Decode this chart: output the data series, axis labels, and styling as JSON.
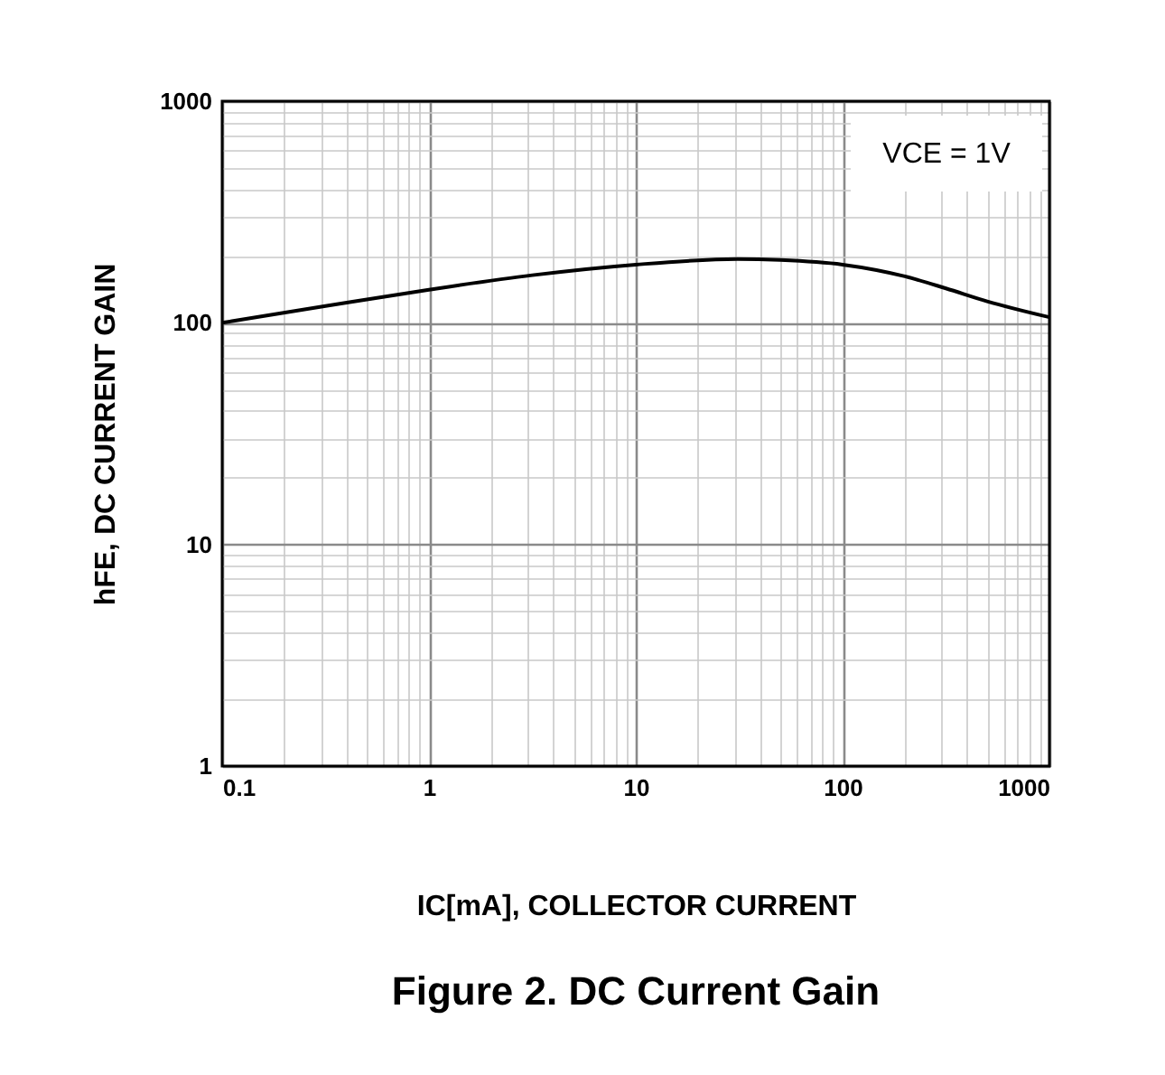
{
  "chart_data": {
    "type": "line",
    "title": "Figure 2. DC Current Gain",
    "xlabel": "IC[mA], COLLECTOR CURRENT",
    "ylabel": "hFE, DC CURRENT GAIN",
    "annotations": [
      "VCE = 1V"
    ],
    "x": [
      0.1,
      0.316,
      1,
      3.16,
      10,
      31,
      50,
      100,
      200,
      316,
      500,
      1000
    ],
    "series": [
      {
        "color": "#000000",
        "values": [
          100,
          119,
          141,
          164,
          183,
          194,
          192,
          183,
          162,
          143,
          125,
          106
        ]
      }
    ],
    "log": "xy",
    "grid": true,
    "marker": "none",
    "line_style": "solid",
    "xlim": [
      0.1,
      1000
    ],
    "ylim": [
      1,
      1000
    ],
    "xticks": [
      0.1,
      {
        "value": 0.2,
        "label": null
      },
      {
        "value": 0.3,
        "label": null
      },
      {
        "value": 0.4,
        "label": null
      },
      {
        "value": 0.5,
        "label": null
      },
      {
        "value": 0.6,
        "label": null
      },
      {
        "value": 0.7,
        "label": null
      },
      {
        "value": 0.8,
        "label": null
      },
      {
        "value": 0.9,
        "label": null
      },
      1,
      {
        "value": 2,
        "label": null
      },
      {
        "value": 3,
        "label": null
      },
      {
        "value": 4,
        "label": null
      },
      {
        "value": 5,
        "label": null
      },
      {
        "value": 6,
        "label": null
      },
      {
        "value": 7,
        "label": null
      },
      {
        "value": 8,
        "label": null
      },
      {
        "value": 9,
        "label": null
      },
      10,
      {
        "value": 20,
        "label": null
      },
      {
        "value": 30,
        "label": null
      },
      {
        "value": 40,
        "label": null
      },
      {
        "value": 50,
        "label": null
      },
      {
        "value": 60,
        "label": null
      },
      {
        "value": 70,
        "label": null
      },
      {
        "value": 80,
        "label": null
      },
      {
        "value": 90,
        "label": null
      },
      100,
      {
        "value": 200,
        "label": null
      },
      {
        "value": 300,
        "label": null
      },
      {
        "value": 400,
        "label": null
      },
      {
        "value": 500,
        "label": null
      },
      {
        "value": 600,
        "label": null
      },
      {
        "value": 700,
        "label": null
      },
      {
        "value": 800,
        "label": null
      },
      {
        "value": 900,
        "label": null
      },
      1000
    ],
    "yticks": [
      1,
      {
        "value": 2,
        "label": null
      },
      {
        "value": 3,
        "label": null
      },
      {
        "value": 4,
        "label": null
      },
      {
        "value": 5,
        "label": null
      },
      {
        "value": 6,
        "label": null
      },
      {
        "value": 7,
        "label": null
      },
      {
        "value": 8,
        "label": null
      },
      {
        "value": 9,
        "label": null
      },
      10,
      {
        "value": 20,
        "label": null
      },
      {
        "value": 30,
        "label": null
      },
      {
        "value": 40,
        "label": null
      },
      {
        "value": 50,
        "label": null
      },
      {
        "value": 60,
        "label": null
      },
      {
        "value": 70,
        "label": null
      },
      {
        "value": 80,
        "label": null
      },
      {
        "value": 90,
        "label": null
      },
      100,
      {
        "value": 200,
        "label": null
      },
      {
        "value": 300,
        "label": null
      },
      {
        "value": 400,
        "label": null
      },
      {
        "value": 500,
        "label": null
      },
      {
        "value": 600,
        "label": null
      },
      {
        "value": 700,
        "label": null
      },
      {
        "value": 800,
        "label": null
      },
      {
        "value": 900,
        "label": null
      },
      1000
    ]
  }
}
